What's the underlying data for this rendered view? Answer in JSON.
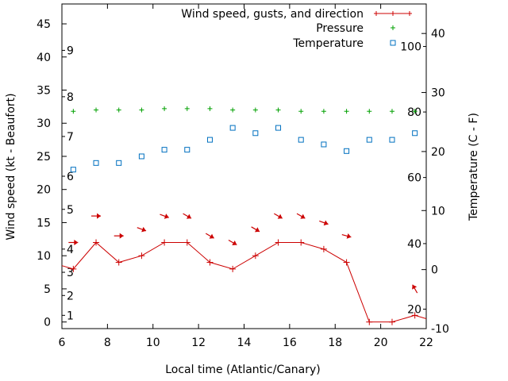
{
  "chart_data": {
    "type": "line",
    "title": "",
    "xlabel": "Local time (Atlantic/Canary)",
    "ylabel_left": "Wind speed (kt - Beaufort)",
    "ylabel_right": "Temperature (C - F)",
    "xlim": [
      6,
      22
    ],
    "ylim_left": [
      -1,
      48
    ],
    "ylim_right": [
      -10,
      45
    ],
    "x_ticks": [
      6,
      8,
      10,
      12,
      14,
      16,
      18,
      20,
      22
    ],
    "y_left_ticks": [
      0,
      5,
      10,
      15,
      20,
      25,
      30,
      35,
      40,
      45
    ],
    "y_right_ticks": [
      -10,
      0,
      10,
      20,
      30,
      40
    ],
    "beaufort_labels": [
      {
        "label": "1",
        "value": 1
      },
      {
        "label": "2",
        "value": 4
      },
      {
        "label": "3",
        "value": 7.5
      },
      {
        "label": "4",
        "value": 11
      },
      {
        "label": "5",
        "value": 17
      },
      {
        "label": "6",
        "value": 22
      },
      {
        "label": "7",
        "value": 28
      },
      {
        "label": "8",
        "value": 34
      },
      {
        "label": "9",
        "value": 41
      }
    ],
    "fahrenheit_labels": [
      {
        "label": "20",
        "value": -6.7
      },
      {
        "label": "40",
        "value": 4.4
      },
      {
        "label": "60",
        "value": 15.6
      },
      {
        "label": "80",
        "value": 26.7
      },
      {
        "label": "100",
        "value": 37.8
      }
    ],
    "legend": [
      {
        "label": "Wind speed, gusts, and direction",
        "color": "#cc0000",
        "marker": "plus-line"
      },
      {
        "label": "Pressure",
        "color": "#00a000",
        "marker": "plus"
      },
      {
        "label": "Temperature",
        "color": "#0070c0",
        "marker": "square"
      }
    ],
    "series": [
      {
        "name": "Wind speed",
        "axis": "left",
        "color": "#cc0000",
        "x": [
          6,
          6.5,
          7.5,
          8.5,
          9.5,
          10.5,
          11.5,
          12.5,
          13.5,
          14.5,
          15.5,
          16.5,
          17.5,
          18.5,
          19.5,
          20.5,
          21.5,
          22
        ],
        "y": [
          8.5,
          8,
          12,
          9,
          10,
          12,
          12,
          9,
          8,
          10,
          12,
          12,
          11,
          9,
          0,
          0,
          1,
          0.5
        ]
      },
      {
        "name": "Gust arrows",
        "axis": "left",
        "color": "#cc0000",
        "points": [
          {
            "x": 6.5,
            "y": 12,
            "angle": 0
          },
          {
            "x": 7.5,
            "y": 16,
            "angle": 0
          },
          {
            "x": 8.5,
            "y": 13,
            "angle": 0
          },
          {
            "x": 9.5,
            "y": 14,
            "angle": 20
          },
          {
            "x": 10.5,
            "y": 16,
            "angle": 20
          },
          {
            "x": 11.5,
            "y": 16,
            "angle": 30
          },
          {
            "x": 12.5,
            "y": 13,
            "angle": 30
          },
          {
            "x": 13.5,
            "y": 12,
            "angle": 30
          },
          {
            "x": 14.5,
            "y": 14,
            "angle": 30
          },
          {
            "x": 15.5,
            "y": 16,
            "angle": 30
          },
          {
            "x": 16.5,
            "y": 16,
            "angle": 30
          },
          {
            "x": 17.5,
            "y": 15,
            "angle": 20
          },
          {
            "x": 18.5,
            "y": 13,
            "angle": 15
          },
          {
            "x": 21.5,
            "y": 5,
            "angle": 240
          }
        ]
      },
      {
        "name": "Pressure",
        "axis": "left",
        "color": "#00a000",
        "x": [
          6.5,
          7.5,
          8.5,
          9.5,
          10.5,
          11.5,
          12.5,
          13.5,
          14.5,
          15.5,
          16.5,
          17.5,
          18.5,
          19.5,
          20.5,
          21.5
        ],
        "y": [
          31.8,
          32,
          32,
          32,
          32.2,
          32.2,
          32.2,
          32,
          32,
          32,
          31.8,
          31.8,
          31.8,
          31.8,
          31.8,
          31.8
        ]
      },
      {
        "name": "Temperature",
        "axis": "left",
        "color": "#0070c0",
        "x": [
          6.5,
          7.5,
          8.5,
          9.5,
          10.5,
          11.5,
          12.5,
          13.5,
          14.5,
          15.5,
          16.5,
          17.5,
          18.5,
          19.5,
          20.5,
          21.5
        ],
        "y": [
          23,
          24,
          24,
          25,
          26,
          26,
          27.5,
          29.3,
          28.5,
          29.3,
          27.5,
          26.8,
          25.8,
          27.5,
          27.5,
          28.5
        ]
      }
    ]
  }
}
